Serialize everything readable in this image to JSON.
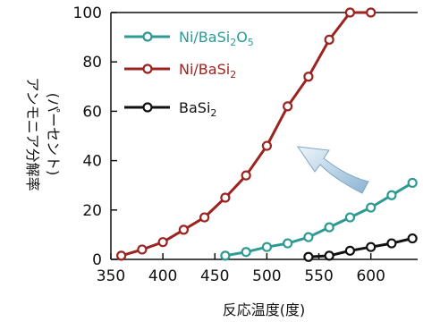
{
  "chart_data": {
    "type": "line",
    "xlabel": "反応温度(度)",
    "ylabel_line1": "(パーセント)",
    "ylabel_line2": "アンモニア分解率",
    "xlim": [
      350,
      645
    ],
    "ylim": [
      0,
      100
    ],
    "xticks": [
      350,
      400,
      450,
      500,
      550,
      600
    ],
    "yticks": [
      0,
      20,
      40,
      60,
      80,
      100
    ],
    "legend_position": "top-left",
    "series": [
      {
        "name_main": "Ni/BaSi",
        "name_sub1": "2",
        "name_mid": "O",
        "name_sub2": "5",
        "color": "#2e9a94",
        "x": [
          460,
          480,
          500,
          520,
          540,
          560,
          580,
          600,
          620,
          640
        ],
        "y": [
          1.5,
          3,
          5,
          6.5,
          9,
          13,
          17,
          21,
          26,
          31
        ]
      },
      {
        "name_main": "Ni/BaSi",
        "name_sub1": "2",
        "color": "#9b2421",
        "x": [
          360,
          380,
          400,
          420,
          440,
          460,
          480,
          500,
          520,
          540,
          560,
          580,
          600
        ],
        "y": [
          1.5,
          4,
          7,
          12,
          17,
          25,
          34,
          46,
          62,
          74,
          89,
          100,
          100
        ]
      },
      {
        "name_main": "BaSi",
        "name_sub1": "2",
        "color": "#111111",
        "x": [
          540,
          560,
          580,
          600,
          620,
          640
        ],
        "y": [
          1,
          1.5,
          3.5,
          5,
          6.5,
          8.5
        ]
      }
    ],
    "annotation": "curved-arrow-up-left"
  }
}
